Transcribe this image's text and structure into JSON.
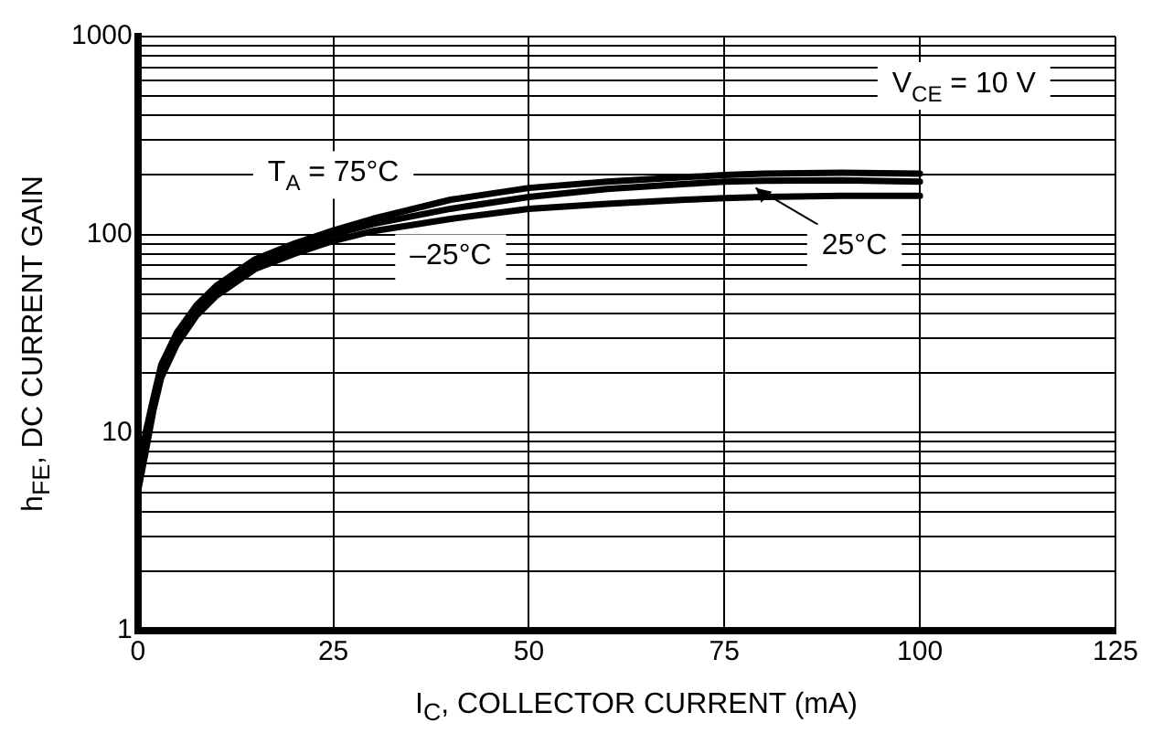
{
  "chart_data": {
    "type": "line",
    "xlabel": "I$_{C}$, COLLECTOR CURRENT (mA)",
    "ylabel": "h$_{FE}$, DC CURRENT GAIN",
    "x": [
      0,
      1,
      2,
      3,
      5,
      7.5,
      10,
      15,
      20,
      25,
      30,
      40,
      50,
      60,
      70,
      75,
      80,
      90,
      100
    ],
    "series": [
      {
        "color": "#000000",
        "values": [
          6,
          10,
          15,
          22,
          32,
          44,
          55,
          75,
          90,
          105,
          120,
          150,
          172,
          185,
          195,
          200,
          203,
          205,
          203
        ]
      },
      {
        "color": "#000000",
        "values": [
          5.5,
          9,
          14,
          20,
          30,
          42,
          52,
          72,
          86,
          100,
          113,
          135,
          155,
          170,
          180,
          185,
          187,
          188,
          185
        ]
      },
      {
        "color": "#000000",
        "values": [
          5,
          8,
          13,
          19,
          28,
          39,
          49,
          67,
          80,
          93,
          104,
          120,
          135,
          143,
          150,
          153,
          155,
          157,
          157
        ]
      }
    ],
    "xlim": [
      0,
      125
    ],
    "xticks": [
      0,
      25,
      50,
      75,
      100,
      125
    ],
    "ylim": [
      1,
      1000
    ],
    "yticks": [
      1,
      {
        "value": 2,
        "label": null
      },
      {
        "value": 3,
        "label": null
      },
      {
        "value": 4,
        "label": null
      },
      {
        "value": 5,
        "label": null
      },
      {
        "value": 6,
        "label": null
      },
      {
        "value": 7,
        "label": null
      },
      {
        "value": 8,
        "label": null
      },
      {
        "value": 9,
        "label": null
      },
      10,
      {
        "value": 20,
        "label": null
      },
      {
        "value": 30,
        "label": null
      },
      {
        "value": 40,
        "label": null
      },
      {
        "value": 50,
        "label": null
      },
      {
        "value": 60,
        "label": null
      },
      {
        "value": 70,
        "label": null
      },
      {
        "value": 80,
        "label": null
      },
      {
        "value": 90,
        "label": null
      },
      100,
      {
        "value": 200,
        "label": null
      },
      {
        "value": 300,
        "label": null
      },
      {
        "value": 400,
        "label": null
      },
      {
        "value": 500,
        "label": null
      },
      {
        "value": 600,
        "label": null
      },
      {
        "value": 700,
        "label": null
      },
      {
        "value": 800,
        "label": null
      },
      {
        "value": 900,
        "label": null
      },
      1000
    ],
    "log": "y",
    "grid": true,
    "legend": false,
    "marker": "none",
    "line_style": "solid",
    "annotations": [
      "T$_{A}$ = 75°C",
      "–25°C",
      {
        "text": "25°C",
        "x": 79,
        "y": 172
      },
      "V$_{CE}$ = 10 V"
    ]
  }
}
